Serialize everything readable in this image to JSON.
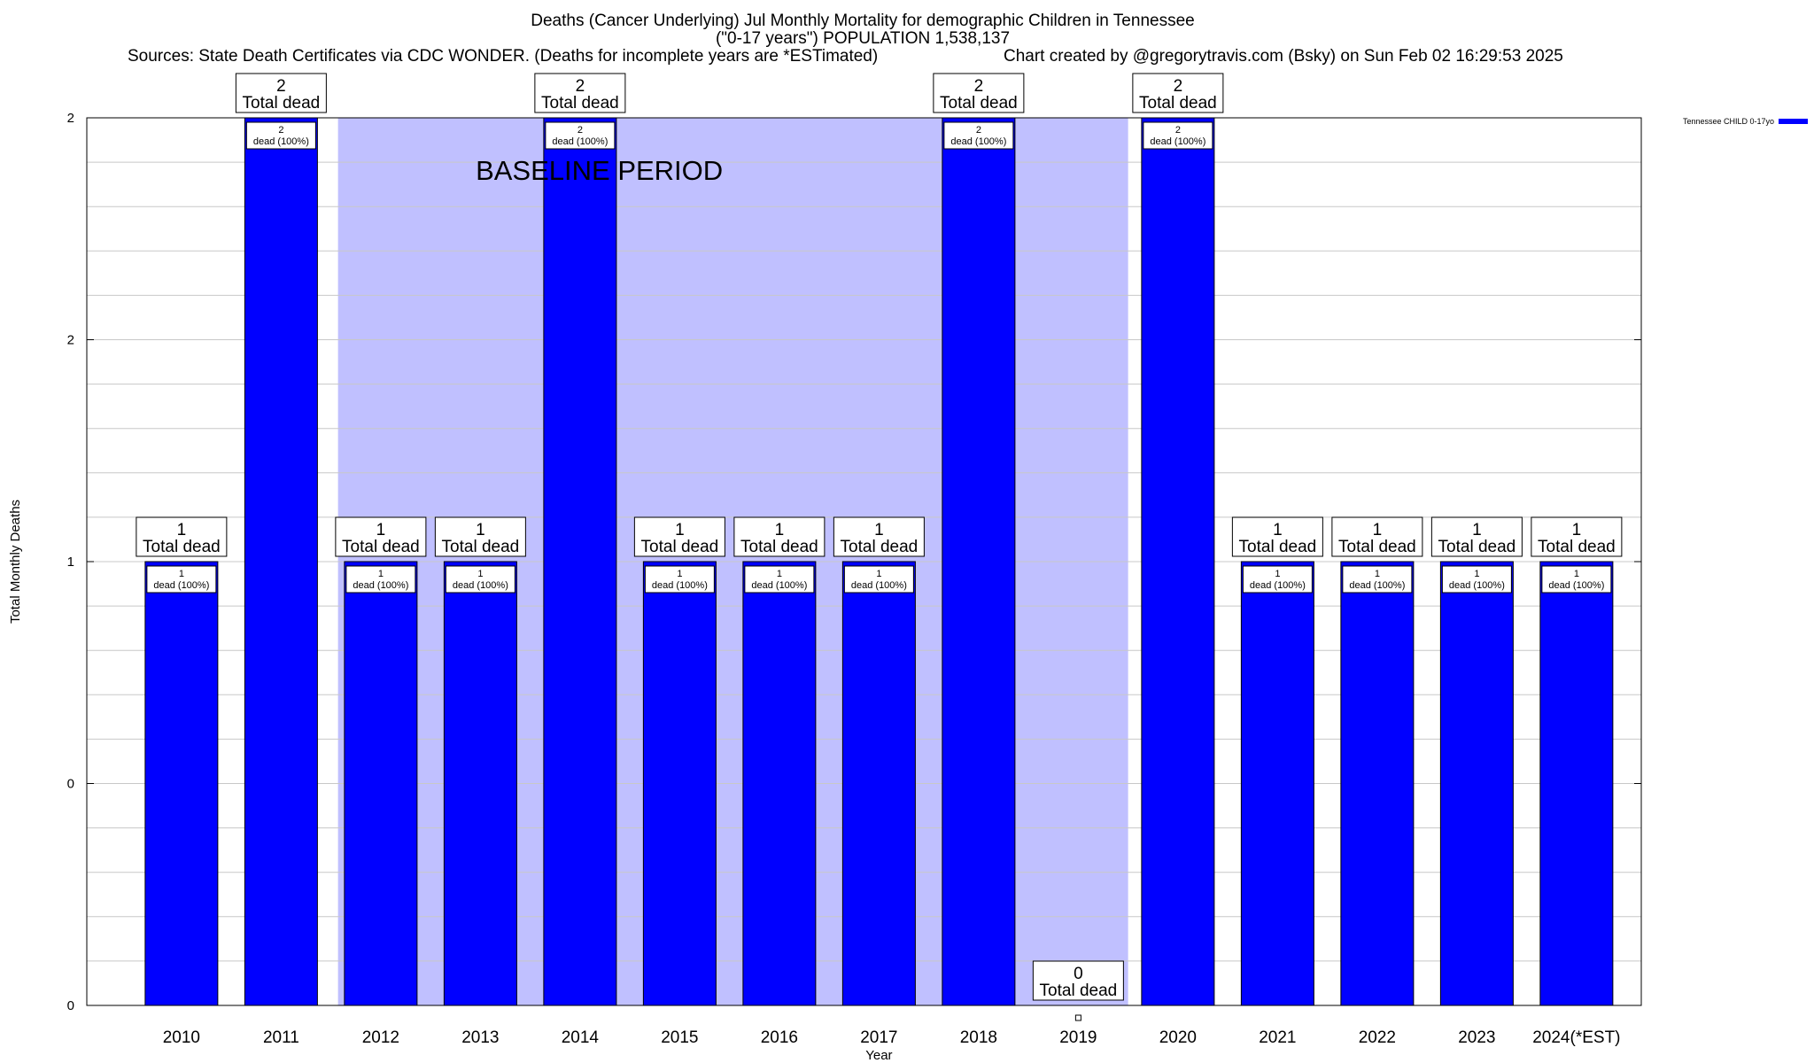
{
  "chart_data": {
    "type": "bar",
    "title": "Deaths (Cancer Underlying) Jul Monthly Mortality for demographic Children in Tennessee",
    "subtitle": "(\"0-17 years\") POPULATION 1,538,137",
    "sources": "Sources: State Death Certificates via CDC WONDER. (Deaths for incomplete years are *ESTimated)",
    "credit": "Chart created by @gregorytravis.com (Bsky) on Sun Feb 02 16:29:53 2025",
    "xlabel": "Year",
    "ylabel": "Total Monthly Deaths",
    "categories": [
      "2010",
      "2011",
      "2012",
      "2013",
      "2014",
      "2015",
      "2016",
      "2017",
      "2018",
      "2019",
      "2020",
      "2021",
      "2022",
      "2023",
      "2024(*EST)"
    ],
    "series": [
      {
        "name": "Tennessee CHILD 0-17yo",
        "color": "#0000ff",
        "values": [
          1,
          2,
          1,
          1,
          2,
          1,
          1,
          1,
          2,
          0,
          2,
          1,
          1,
          1,
          1
        ]
      }
    ],
    "total_labels": [
      "1",
      "2",
      "1",
      "1",
      "2",
      "1",
      "1",
      "1",
      "2",
      "0",
      "2",
      "1",
      "1",
      "1",
      "1"
    ],
    "total_suffix": "Total dead",
    "bar_labels": [
      "1",
      "2",
      "1",
      "1",
      "2",
      "1",
      "1",
      "1",
      "2",
      "",
      "2",
      "1",
      "1",
      "1",
      "1"
    ],
    "bar_suffix": "dead (100%)",
    "ylim": [
      0,
      2
    ],
    "yticks": [
      {
        "value": 0,
        "label": "0"
      },
      {
        "value": 0.5,
        "label": "0"
      },
      {
        "value": 1,
        "label": "1"
      },
      {
        "value": 1.5,
        "label": "2"
      },
      {
        "value": 2,
        "label": "2"
      }
    ],
    "grid": true,
    "baseline_period": {
      "label": "BASELINE PERIOD",
      "from": "2012",
      "to": "2019",
      "color": "#c0c0ff"
    },
    "legend_position": "top-right"
  }
}
